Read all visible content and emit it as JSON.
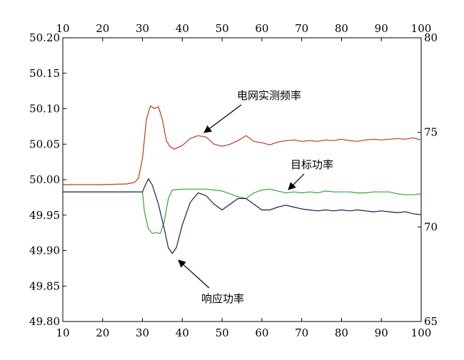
{
  "chart_data": {
    "type": "line",
    "title": "",
    "xlabel": "",
    "ylabel_left": "",
    "ylabel_right": "",
    "xlim": [
      10,
      100
    ],
    "ylim_left": [
      49.8,
      50.2
    ],
    "ylim_right": [
      65,
      80
    ],
    "x_ticks": [
      10,
      20,
      30,
      40,
      50,
      60,
      70,
      80,
      90,
      100
    ],
    "y_left_ticks": [
      49.8,
      49.85,
      49.9,
      49.95,
      50.0,
      50.05,
      50.1,
      50.15,
      50.2
    ],
    "y_left_tick_labels": [
      "49.80",
      "49.85",
      "49.90",
      "49.95",
      "50.00",
      "50.05",
      "50.10",
      "50.15",
      "50.20"
    ],
    "y_right_ticks": [
      65,
      70,
      75,
      80
    ],
    "grid": false,
    "legend": "none",
    "series": [
      {
        "label": "电网实测频率",
        "axis": "left",
        "color": "#c0391c",
        "points": [
          [
            10,
            49.993
          ],
          [
            20,
            49.993
          ],
          [
            26,
            49.994
          ],
          [
            28,
            49.996
          ],
          [
            29,
            50.002
          ],
          [
            30,
            50.03
          ],
          [
            31,
            50.085
          ],
          [
            32,
            50.104
          ],
          [
            33,
            50.1
          ],
          [
            34,
            50.103
          ],
          [
            35,
            50.085
          ],
          [
            36,
            50.055
          ],
          [
            37,
            50.046
          ],
          [
            38,
            50.043
          ],
          [
            40,
            50.048
          ],
          [
            42,
            50.058
          ],
          [
            44,
            50.062
          ],
          [
            46,
            50.06
          ],
          [
            48,
            50.05
          ],
          [
            50,
            50.047
          ],
          [
            52,
            50.05
          ],
          [
            54,
            50.055
          ],
          [
            56,
            50.062
          ],
          [
            57,
            50.058
          ],
          [
            58,
            50.054
          ],
          [
            60,
            50.052
          ],
          [
            62,
            50.049
          ],
          [
            64,
            50.053
          ],
          [
            66,
            50.055
          ],
          [
            68,
            50.056
          ],
          [
            70,
            50.054
          ],
          [
            72,
            50.055
          ],
          [
            74,
            50.054
          ],
          [
            76,
            50.056
          ],
          [
            78,
            50.055
          ],
          [
            80,
            50.057
          ],
          [
            82,
            50.055
          ],
          [
            84,
            50.054
          ],
          [
            86,
            50.056
          ],
          [
            88,
            50.057
          ],
          [
            90,
            50.056
          ],
          [
            92,
            50.057
          ],
          [
            94,
            50.058
          ],
          [
            96,
            50.057
          ],
          [
            98,
            50.059
          ],
          [
            100,
            50.056
          ]
        ]
      },
      {
        "label": "目标功率",
        "axis": "right",
        "color": "#3aa03a",
        "points": [
          [
            10,
            71.85
          ],
          [
            30,
            71.85
          ],
          [
            30.5,
            70.8
          ],
          [
            31.5,
            69.9
          ],
          [
            32.5,
            69.65
          ],
          [
            33.5,
            69.7
          ],
          [
            34.5,
            69.65
          ],
          [
            35.5,
            70.3
          ],
          [
            36.5,
            71.5
          ],
          [
            37.5,
            71.95
          ],
          [
            40,
            72
          ],
          [
            44,
            72
          ],
          [
            46,
            72
          ],
          [
            48,
            71.95
          ],
          [
            50,
            71.9
          ],
          [
            52,
            71.75
          ],
          [
            54,
            71.6
          ],
          [
            56,
            71.5
          ],
          [
            58,
            71.8
          ],
          [
            60,
            71.95
          ],
          [
            62,
            72
          ],
          [
            64,
            71.9
          ],
          [
            66,
            71.8
          ],
          [
            68,
            71.85
          ],
          [
            70,
            71.8
          ],
          [
            72,
            71.85
          ],
          [
            74,
            71.8
          ],
          [
            76,
            71.9
          ],
          [
            78,
            71.85
          ],
          [
            80,
            71.85
          ],
          [
            82,
            71.85
          ],
          [
            84,
            71.8
          ],
          [
            86,
            71.8
          ],
          [
            88,
            71.85
          ],
          [
            90,
            71.85
          ],
          [
            92,
            71.85
          ],
          [
            94,
            71.75
          ],
          [
            96,
            71.7
          ],
          [
            98,
            71.7
          ],
          [
            100,
            71.75
          ]
        ]
      },
      {
        "label": "响应功率",
        "axis": "right",
        "color": "#1a1a5a",
        "points": [
          [
            10,
            71.85
          ],
          [
            30,
            71.85
          ],
          [
            30.5,
            72.1
          ],
          [
            31.5,
            72.55
          ],
          [
            32.5,
            72.2
          ],
          [
            34,
            71.2
          ],
          [
            35.5,
            69.9
          ],
          [
            36.5,
            68.9
          ],
          [
            37.5,
            68.6
          ],
          [
            38.5,
            68.9
          ],
          [
            40,
            70.1
          ],
          [
            42,
            71.3
          ],
          [
            44,
            71.8
          ],
          [
            46,
            71.65
          ],
          [
            48,
            71.2
          ],
          [
            50,
            70.9
          ],
          [
            52,
            71.2
          ],
          [
            54,
            71.5
          ],
          [
            56,
            71.5
          ],
          [
            58,
            71.2
          ],
          [
            60,
            70.9
          ],
          [
            62,
            70.9
          ],
          [
            64,
            71.05
          ],
          [
            66,
            71.15
          ],
          [
            68,
            71.05
          ],
          [
            70,
            70.95
          ],
          [
            72,
            70.9
          ],
          [
            74,
            70.85
          ],
          [
            76,
            70.9
          ],
          [
            78,
            70.85
          ],
          [
            80,
            70.9
          ],
          [
            82,
            70.85
          ],
          [
            84,
            70.9
          ],
          [
            86,
            70.85
          ],
          [
            88,
            70.8
          ],
          [
            90,
            70.85
          ],
          [
            92,
            70.8
          ],
          [
            94,
            70.75
          ],
          [
            96,
            70.8
          ],
          [
            98,
            70.7
          ],
          [
            100,
            70.65
          ]
        ]
      }
    ],
    "annotations": [
      {
        "text": "电网实测频率",
        "target": [
          44,
          50.063
        ]
      },
      {
        "text": "目标功率",
        "target": [
          72,
          71.9
        ]
      },
      {
        "text": "响应功率",
        "target": [
          37.5,
          68.6
        ]
      }
    ]
  }
}
